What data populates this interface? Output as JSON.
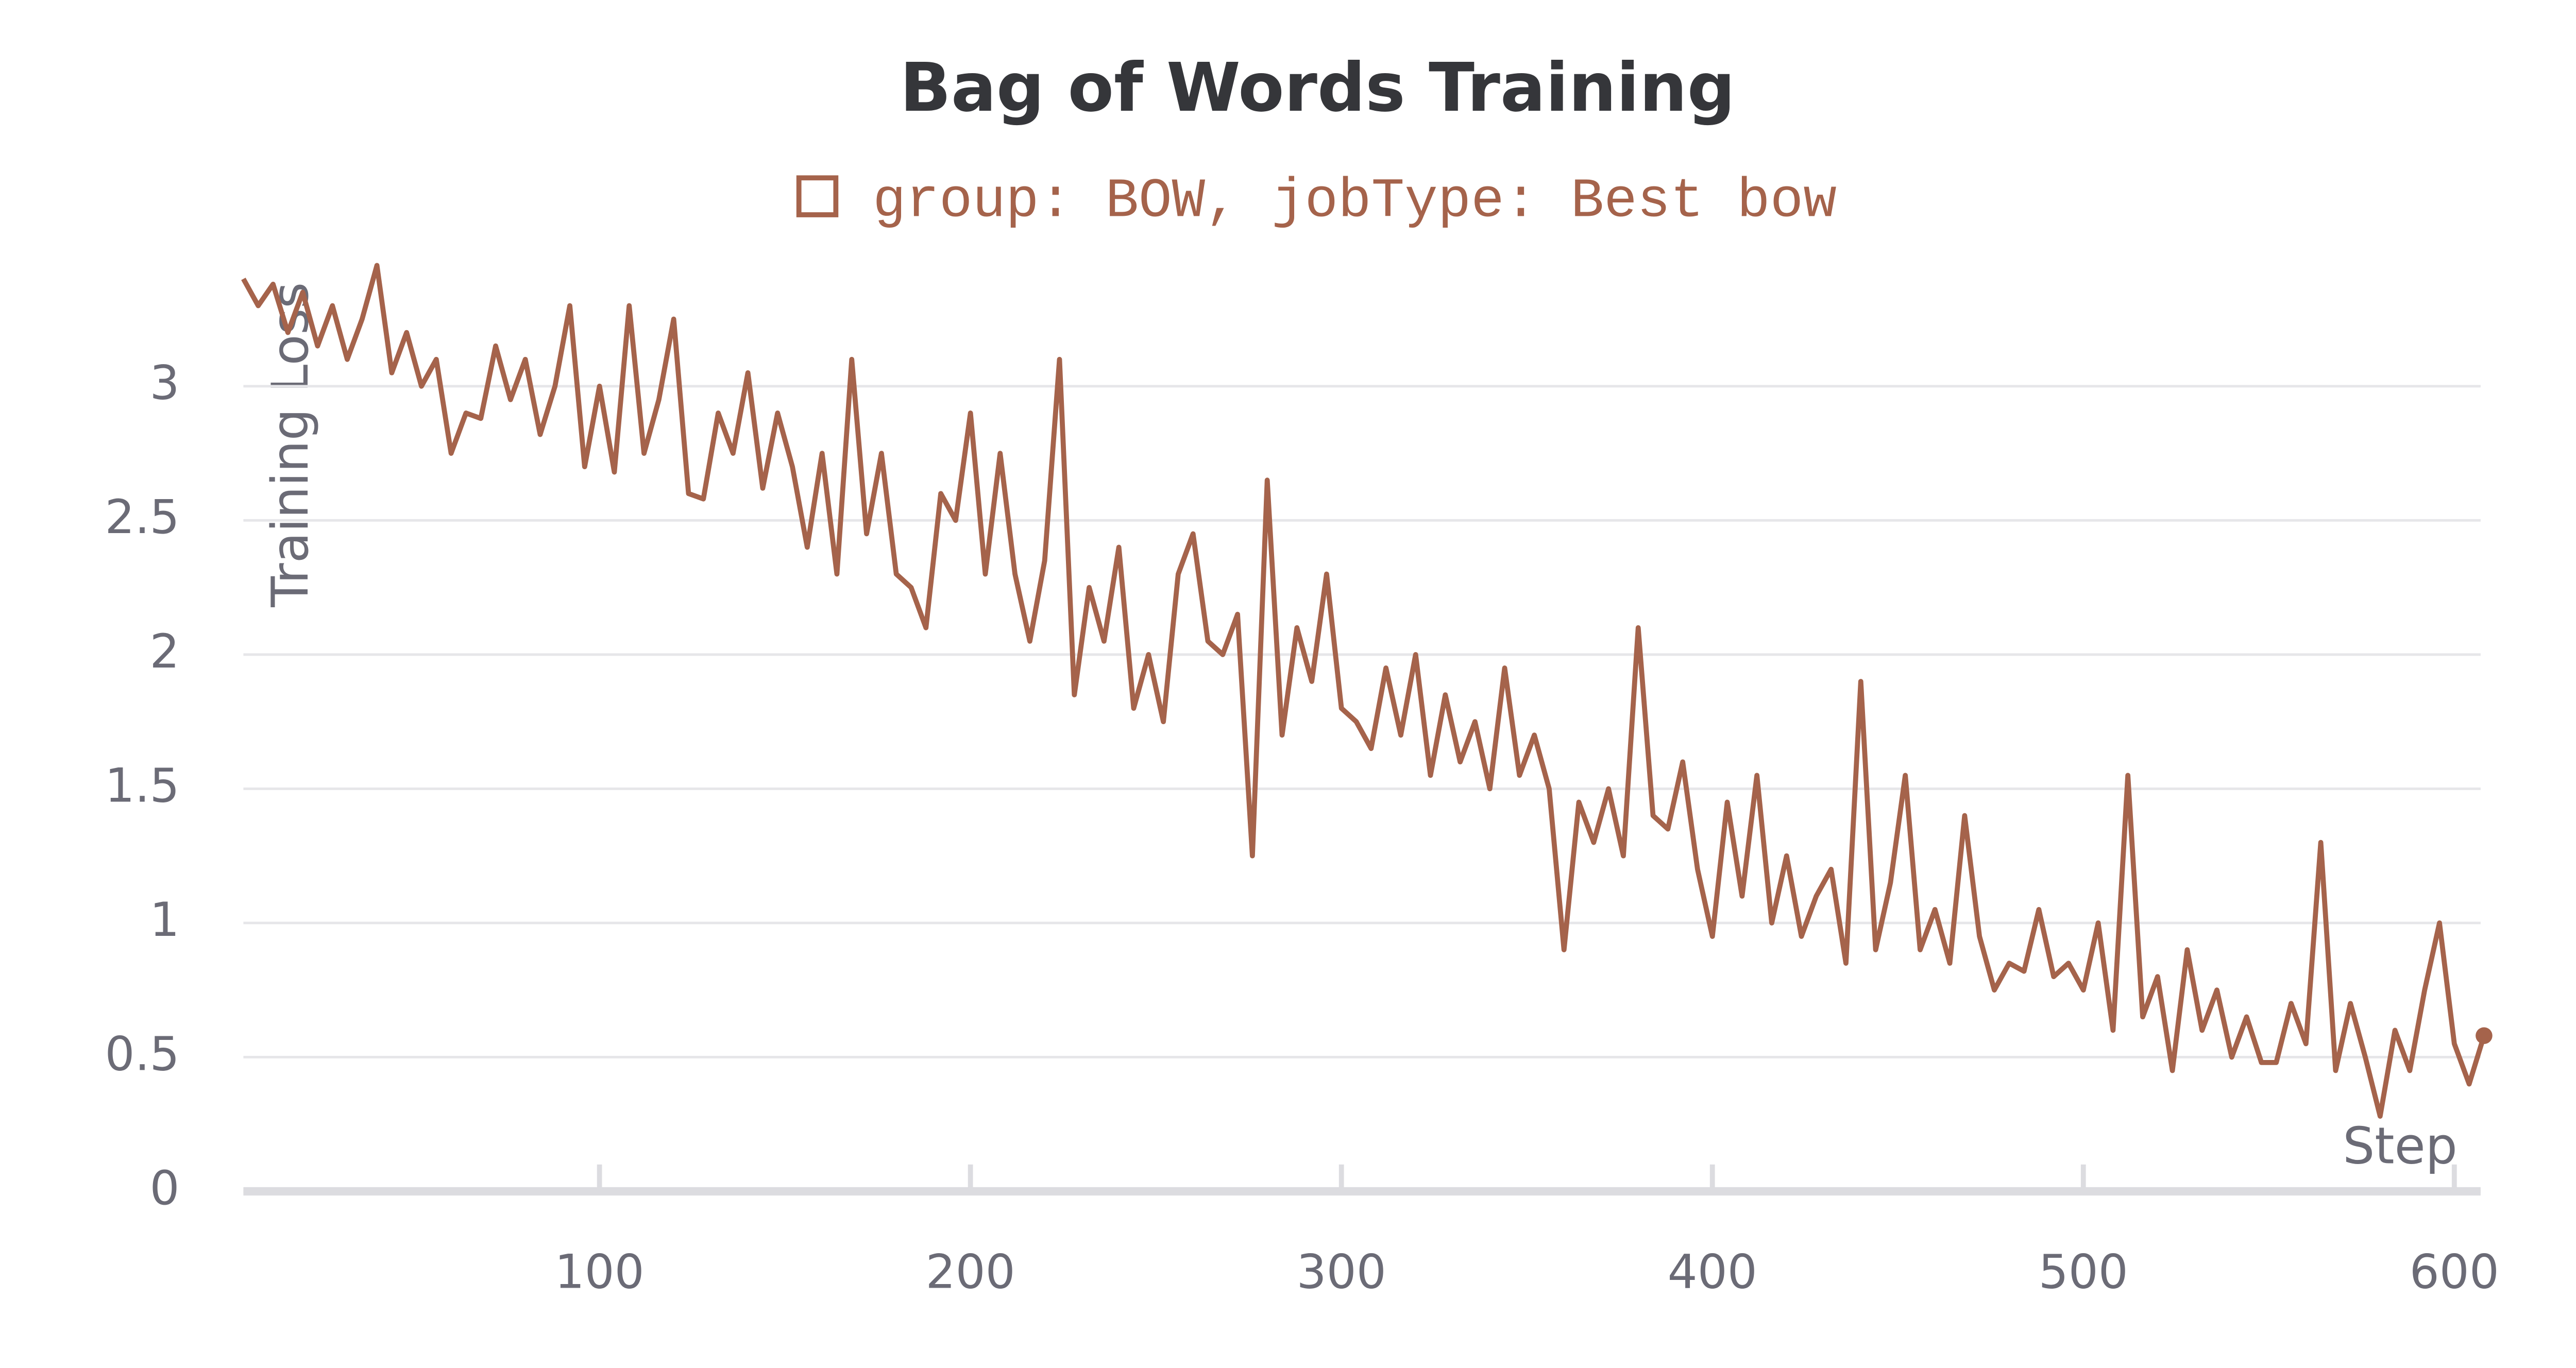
{
  "chart_data": {
    "type": "line",
    "title": "Bag of Words Training",
    "ylabel": "Training Loss",
    "xlabel": "Step",
    "x": [
      4,
      8,
      12,
      16,
      20,
      24,
      28,
      32,
      36,
      40,
      44,
      48,
      52,
      56,
      60,
      64,
      68,
      72,
      76,
      80,
      84,
      88,
      92,
      96,
      100,
      104,
      108,
      112,
      116,
      120,
      124,
      128,
      132,
      136,
      140,
      144,
      148,
      152,
      156,
      160,
      164,
      168,
      172,
      176,
      180,
      184,
      188,
      192,
      196,
      200,
      204,
      208,
      212,
      216,
      220,
      224,
      228,
      232,
      236,
      240,
      244,
      248,
      252,
      256,
      260,
      264,
      268,
      272,
      276,
      280,
      284,
      288,
      292,
      296,
      300,
      304,
      308,
      312,
      316,
      320,
      324,
      328,
      332,
      336,
      340,
      344,
      348,
      352,
      356,
      360,
      364,
      368,
      372,
      376,
      380,
      384,
      388,
      392,
      396,
      400,
      404,
      408,
      412,
      416,
      420,
      424,
      428,
      432,
      436,
      440,
      444,
      448,
      452,
      456,
      460,
      464,
      468,
      472,
      476,
      480,
      484,
      488,
      492,
      496,
      500,
      504,
      508,
      512,
      516,
      520,
      524,
      528,
      532,
      536,
      540,
      544,
      548,
      552,
      556,
      560,
      564,
      568,
      572,
      576,
      580,
      584,
      588,
      592,
      596,
      600,
      604,
      608
    ],
    "series": [
      {
        "name": "group: BOW, jobType: Best bow",
        "color": "#a5634b",
        "values": [
          3.4,
          3.3,
          3.38,
          3.2,
          3.35,
          3.15,
          3.3,
          3.1,
          3.25,
          3.45,
          3.05,
          3.2,
          3.0,
          3.1,
          2.75,
          2.9,
          2.88,
          3.15,
          2.95,
          3.1,
          2.82,
          3.0,
          3.3,
          2.7,
          3.0,
          2.68,
          3.3,
          2.75,
          2.95,
          3.25,
          2.6,
          2.58,
          2.9,
          2.75,
          3.05,
          2.62,
          2.9,
          2.7,
          2.4,
          2.75,
          2.3,
          3.1,
          2.45,
          2.75,
          2.3,
          2.25,
          2.1,
          2.6,
          2.5,
          2.9,
          2.3,
          2.75,
          2.3,
          2.05,
          2.35,
          3.1,
          1.85,
          2.25,
          2.05,
          2.4,
          1.8,
          2.0,
          1.75,
          2.3,
          2.45,
          2.05,
          2.0,
          2.15,
          1.25,
          2.65,
          1.7,
          2.1,
          1.9,
          2.3,
          1.8,
          1.75,
          1.65,
          1.95,
          1.7,
          2.0,
          1.55,
          1.85,
          1.6,
          1.75,
          1.5,
          1.95,
          1.55,
          1.7,
          1.5,
          0.9,
          1.45,
          1.3,
          1.5,
          1.25,
          2.1,
          1.4,
          1.35,
          1.6,
          1.2,
          0.95,
          1.45,
          1.1,
          1.55,
          1.0,
          1.25,
          0.95,
          1.1,
          1.2,
          0.85,
          1.9,
          0.9,
          1.15,
          1.55,
          0.9,
          1.05,
          0.85,
          1.4,
          0.95,
          0.75,
          0.85,
          0.82,
          1.05,
          0.8,
          0.85,
          0.75,
          1.0,
          0.6,
          1.55,
          0.65,
          0.8,
          0.45,
          0.9,
          0.6,
          0.75,
          0.5,
          0.65,
          0.48,
          0.48,
          0.7,
          0.55,
          1.3,
          0.45,
          0.7,
          0.5,
          0.28,
          0.6,
          0.45,
          0.75,
          1.0,
          0.55,
          0.4,
          0.58
        ]
      }
    ],
    "xlim": [
      4,
      608
    ],
    "ylim": [
      0,
      3.47
    ],
    "xticks": [
      100,
      200,
      300,
      400,
      500,
      600
    ],
    "yticks": [
      0,
      0.5,
      1,
      1.5,
      2,
      2.5,
      3
    ],
    "grid": true
  }
}
